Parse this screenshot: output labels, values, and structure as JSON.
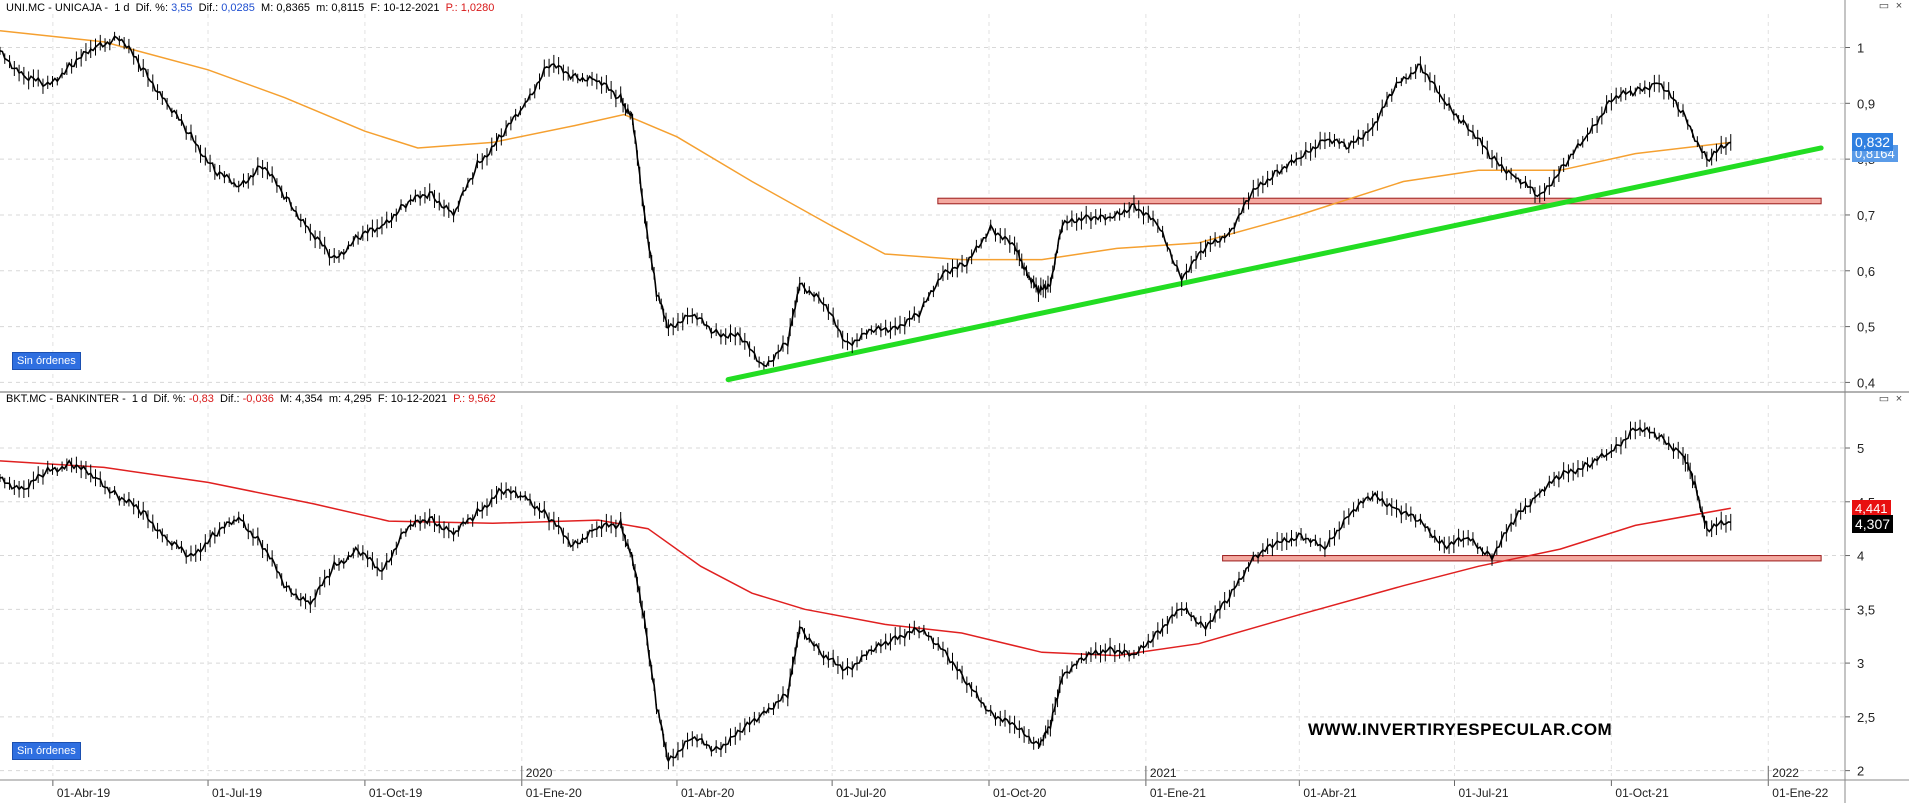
{
  "panels": [
    {
      "header": {
        "symbol": "UNI.MC - UNICAJA -",
        "tf": "1 d",
        "dif_pct_label": "Dif. %:",
        "dif_pct": "3,55",
        "dif_label": "Dif.:",
        "dif": "0,0285",
        "max_label": "M:",
        "max": "0,8365",
        "min_label": "m:",
        "min": "0,8115",
        "date_label": "F:",
        "date": "10-12-2021",
        "p_label": "P.:",
        "p": "1,0280"
      },
      "badge": "Sin órdenes",
      "price_tag": "0,832",
      "price_tag_under": "0,8164"
    },
    {
      "header": {
        "symbol": "BKT.MC - BANKINTER -",
        "tf": "1 d",
        "dif_pct_label": "Dif. %:",
        "dif_pct": "-0,83",
        "dif_label": "Dif.:",
        "dif": "-0,036",
        "max_label": "M:",
        "max": "4,354",
        "min_label": "m:",
        "min": "4,295",
        "date_label": "F:",
        "date": "10-12-2021",
        "p_label": "P.:",
        "p": "9,562"
      },
      "badge": "Sin órdenes",
      "price_tag": "4,307",
      "price_tag_under": "4,441"
    }
  ],
  "watermark": "WWW.INVERTIRYESPECULAR.COM",
  "window_buttons": [
    "▭",
    "×"
  ],
  "colors": {
    "uni_ma": "#f5a030",
    "bkt_ma": "#e02020",
    "trendline": "#22dd22",
    "resistance_fill": "#f4a9a0",
    "resistance_border": "#9b1c1c",
    "price_tag_blue": "#2f7fe0",
    "price_tag_red": "#e81010",
    "price_tag_black": "#000000"
  },
  "chart_data": [
    {
      "type": "line",
      "title": "UNI.MC - UNICAJA",
      "x_start": "2019-03-01",
      "x_end": "2021-12-10",
      "ylim": [
        0.39,
        1.06
      ],
      "y_ticks": [
        "0,4",
        "0,5",
        "0,6",
        "0,7",
        "0,8",
        "0,9",
        "1"
      ],
      "y_tick_values": [
        0.4,
        0.5,
        0.6,
        0.7,
        0.8,
        0.9,
        1.0
      ],
      "x_tick_labels": [
        "01-Abr-19",
        "01-Jul-19",
        "01-Oct-19",
        "01-Ene-20",
        "01-Abr-20",
        "01-Jul-20",
        "01-Oct-20",
        "01-Ene-21",
        "01-Abr-21",
        "01-Jul-21",
        "01-Oct-21",
        "01-Ene-22"
      ],
      "x_tick_dates": [
        "2019-04-01",
        "2019-07-01",
        "2019-10-01",
        "2020-01-01",
        "2020-04-01",
        "2020-07-01",
        "2020-10-01",
        "2021-01-01",
        "2021-04-01",
        "2021-07-01",
        "2021-10-01",
        "2022-01-01"
      ],
      "year_labels": [
        {
          "label": "2020",
          "date": "2020-01-01"
        },
        {
          "label": "2021",
          "date": "2021-01-01"
        },
        {
          "label": "2022",
          "date": "2022-01-01"
        }
      ],
      "price_series": [
        {
          "x": "2019-03-01",
          "y": 0.99
        },
        {
          "x": "2019-03-15",
          "y": 0.95
        },
        {
          "x": "2019-03-29",
          "y": 0.93
        },
        {
          "x": "2019-04-12",
          "y": 0.97
        },
        {
          "x": "2019-04-26",
          "y": 1.0
        },
        {
          "x": "2019-05-10",
          "y": 1.02
        },
        {
          "x": "2019-05-24",
          "y": 0.96
        },
        {
          "x": "2019-06-07",
          "y": 0.9
        },
        {
          "x": "2019-06-21",
          "y": 0.84
        },
        {
          "x": "2019-07-05",
          "y": 0.78
        },
        {
          "x": "2019-07-19",
          "y": 0.75
        },
        {
          "x": "2019-08-02",
          "y": 0.79
        },
        {
          "x": "2019-08-16",
          "y": 0.73
        },
        {
          "x": "2019-08-30",
          "y": 0.67
        },
        {
          "x": "2019-09-13",
          "y": 0.62
        },
        {
          "x": "2019-09-27",
          "y": 0.66
        },
        {
          "x": "2019-10-11",
          "y": 0.68
        },
        {
          "x": "2019-10-25",
          "y": 0.72
        },
        {
          "x": "2019-11-08",
          "y": 0.74
        },
        {
          "x": "2019-11-22",
          "y": 0.7
        },
        {
          "x": "2019-12-06",
          "y": 0.79
        },
        {
          "x": "2019-12-20",
          "y": 0.84
        },
        {
          "x": "2020-01-03",
          "y": 0.9
        },
        {
          "x": "2020-01-17",
          "y": 0.97
        },
        {
          "x": "2020-01-31",
          "y": 0.95
        },
        {
          "x": "2020-02-14",
          "y": 0.94
        },
        {
          "x": "2020-02-28",
          "y": 0.91
        },
        {
          "x": "2020-03-06",
          "y": 0.87
        },
        {
          "x": "2020-03-13",
          "y": 0.7
        },
        {
          "x": "2020-03-20",
          "y": 0.56
        },
        {
          "x": "2020-03-27",
          "y": 0.5
        },
        {
          "x": "2020-04-10",
          "y": 0.52
        },
        {
          "x": "2020-04-24",
          "y": 0.49
        },
        {
          "x": "2020-05-08",
          "y": 0.48
        },
        {
          "x": "2020-05-22",
          "y": 0.43
        },
        {
          "x": "2020-06-05",
          "y": 0.47
        },
        {
          "x": "2020-06-12",
          "y": 0.58
        },
        {
          "x": "2020-06-26",
          "y": 0.54
        },
        {
          "x": "2020-07-10",
          "y": 0.47
        },
        {
          "x": "2020-07-24",
          "y": 0.49
        },
        {
          "x": "2020-08-07",
          "y": 0.5
        },
        {
          "x": "2020-08-21",
          "y": 0.52
        },
        {
          "x": "2020-09-04",
          "y": 0.6
        },
        {
          "x": "2020-09-18",
          "y": 0.61
        },
        {
          "x": "2020-10-02",
          "y": 0.68
        },
        {
          "x": "2020-10-16",
          "y": 0.64
        },
        {
          "x": "2020-10-23",
          "y": 0.6
        },
        {
          "x": "2020-10-30",
          "y": 0.56
        },
        {
          "x": "2020-11-06",
          "y": 0.58
        },
        {
          "x": "2020-11-13",
          "y": 0.68
        },
        {
          "x": "2020-11-27",
          "y": 0.7
        },
        {
          "x": "2020-12-11",
          "y": 0.69
        },
        {
          "x": "2020-12-25",
          "y": 0.72
        },
        {
          "x": "2021-01-08",
          "y": 0.68
        },
        {
          "x": "2021-01-22",
          "y": 0.59
        },
        {
          "x": "2021-02-05",
          "y": 0.64
        },
        {
          "x": "2021-02-19",
          "y": 0.67
        },
        {
          "x": "2021-03-05",
          "y": 0.74
        },
        {
          "x": "2021-03-19",
          "y": 0.78
        },
        {
          "x": "2021-04-02",
          "y": 0.8
        },
        {
          "x": "2021-04-16",
          "y": 0.84
        },
        {
          "x": "2021-04-30",
          "y": 0.82
        },
        {
          "x": "2021-05-14",
          "y": 0.86
        },
        {
          "x": "2021-05-28",
          "y": 0.93
        },
        {
          "x": "2021-06-11",
          "y": 0.97
        },
        {
          "x": "2021-06-25",
          "y": 0.9
        },
        {
          "x": "2021-07-09",
          "y": 0.86
        },
        {
          "x": "2021-07-23",
          "y": 0.8
        },
        {
          "x": "2021-08-06",
          "y": 0.77
        },
        {
          "x": "2021-08-20",
          "y": 0.73
        },
        {
          "x": "2021-09-03",
          "y": 0.79
        },
        {
          "x": "2021-09-17",
          "y": 0.84
        },
        {
          "x": "2021-10-01",
          "y": 0.91
        },
        {
          "x": "2021-10-15",
          "y": 0.92
        },
        {
          "x": "2021-10-29",
          "y": 0.94
        },
        {
          "x": "2021-11-12",
          "y": 0.88
        },
        {
          "x": "2021-11-26",
          "y": 0.8
        },
        {
          "x": "2021-12-10",
          "y": 0.83
        }
      ],
      "ma_series": [
        {
          "x": "2019-03-01",
          "y": 1.03
        },
        {
          "x": "2019-05-01",
          "y": 1.01
        },
        {
          "x": "2019-07-01",
          "y": 0.96
        },
        {
          "x": "2019-08-15",
          "y": 0.91
        },
        {
          "x": "2019-10-01",
          "y": 0.85
        },
        {
          "x": "2019-11-01",
          "y": 0.82
        },
        {
          "x": "2019-12-15",
          "y": 0.83
        },
        {
          "x": "2020-02-01",
          "y": 0.86
        },
        {
          "x": "2020-03-01",
          "y": 0.88
        },
        {
          "x": "2020-04-01",
          "y": 0.84
        },
        {
          "x": "2020-05-15",
          "y": 0.76
        },
        {
          "x": "2020-07-01",
          "y": 0.68
        },
        {
          "x": "2020-08-01",
          "y": 0.63
        },
        {
          "x": "2020-09-15",
          "y": 0.62
        },
        {
          "x": "2020-11-01",
          "y": 0.62
        },
        {
          "x": "2020-12-15",
          "y": 0.64
        },
        {
          "x": "2021-02-01",
          "y": 0.65
        },
        {
          "x": "2021-04-01",
          "y": 0.7
        },
        {
          "x": "2021-06-01",
          "y": 0.76
        },
        {
          "x": "2021-07-15",
          "y": 0.78
        },
        {
          "x": "2021-09-01",
          "y": 0.78
        },
        {
          "x": "2021-10-15",
          "y": 0.81
        },
        {
          "x": "2021-12-10",
          "y": 0.83
        }
      ],
      "resistance_band": {
        "y_low": 0.72,
        "y_high": 0.73,
        "x_start": "2020-09-01",
        "x_end": "2022-02-01"
      },
      "trendline": {
        "x1": "2020-05-01",
        "y1": 0.405,
        "x2": "2022-02-01",
        "y2": 0.82
      }
    },
    {
      "type": "line",
      "title": "BKT.MC - BANKINTER",
      "x_start": "2019-03-01",
      "x_end": "2021-12-10",
      "ylim": [
        1.95,
        5.4
      ],
      "y_ticks": [
        "2",
        "2,5",
        "3",
        "3,5",
        "4",
        "4,5",
        "5"
      ],
      "y_tick_values": [
        2.0,
        2.5,
        3.0,
        3.5,
        4.0,
        4.5,
        5.0
      ],
      "x_tick_labels": [
        "01-Abr-19",
        "01-Jul-19",
        "01-Oct-19",
        "01-Ene-20",
        "01-Abr-20",
        "01-Jul-20",
        "01-Oct-20",
        "01-Ene-21",
        "01-Abr-21",
        "01-Jul-21",
        "01-Oct-21",
        "01-Ene-22"
      ],
      "x_tick_dates": [
        "2019-04-01",
        "2019-07-01",
        "2019-10-01",
        "2020-01-01",
        "2020-04-01",
        "2020-07-01",
        "2020-10-01",
        "2021-01-01",
        "2021-04-01",
        "2021-07-01",
        "2021-10-01",
        "2022-01-01"
      ],
      "year_labels": [
        {
          "label": "2020",
          "date": "2020-01-01"
        },
        {
          "label": "2021",
          "date": "2021-01-01"
        },
        {
          "label": "2022",
          "date": "2022-01-01"
        }
      ],
      "price_series": [
        {
          "x": "2019-03-01",
          "y": 4.7
        },
        {
          "x": "2019-03-15",
          "y": 4.62
        },
        {
          "x": "2019-03-29",
          "y": 4.78
        },
        {
          "x": "2019-04-12",
          "y": 4.86
        },
        {
          "x": "2019-04-26",
          "y": 4.72
        },
        {
          "x": "2019-05-10",
          "y": 4.55
        },
        {
          "x": "2019-05-24",
          "y": 4.4
        },
        {
          "x": "2019-06-07",
          "y": 4.15
        },
        {
          "x": "2019-06-21",
          "y": 3.98
        },
        {
          "x": "2019-07-05",
          "y": 4.2
        },
        {
          "x": "2019-07-19",
          "y": 4.35
        },
        {
          "x": "2019-08-02",
          "y": 4.1
        },
        {
          "x": "2019-08-16",
          "y": 3.7
        },
        {
          "x": "2019-08-30",
          "y": 3.55
        },
        {
          "x": "2019-09-13",
          "y": 3.9
        },
        {
          "x": "2019-09-27",
          "y": 4.05
        },
        {
          "x": "2019-10-11",
          "y": 3.85
        },
        {
          "x": "2019-10-25",
          "y": 4.25
        },
        {
          "x": "2019-11-08",
          "y": 4.35
        },
        {
          "x": "2019-11-22",
          "y": 4.2
        },
        {
          "x": "2019-12-06",
          "y": 4.4
        },
        {
          "x": "2019-12-20",
          "y": 4.6
        },
        {
          "x": "2020-01-03",
          "y": 4.55
        },
        {
          "x": "2020-01-17",
          "y": 4.35
        },
        {
          "x": "2020-01-31",
          "y": 4.1
        },
        {
          "x": "2020-02-14",
          "y": 4.25
        },
        {
          "x": "2020-02-28",
          "y": 4.3
        },
        {
          "x": "2020-03-06",
          "y": 3.95
        },
        {
          "x": "2020-03-13",
          "y": 3.4
        },
        {
          "x": "2020-03-20",
          "y": 2.6
        },
        {
          "x": "2020-03-27",
          "y": 2.1
        },
        {
          "x": "2020-04-10",
          "y": 2.3
        },
        {
          "x": "2020-04-24",
          "y": 2.2
        },
        {
          "x": "2020-05-08",
          "y": 2.35
        },
        {
          "x": "2020-05-22",
          "y": 2.55
        },
        {
          "x": "2020-06-05",
          "y": 2.7
        },
        {
          "x": "2020-06-12",
          "y": 3.35
        },
        {
          "x": "2020-06-26",
          "y": 3.05
        },
        {
          "x": "2020-07-10",
          "y": 2.95
        },
        {
          "x": "2020-07-24",
          "y": 3.1
        },
        {
          "x": "2020-08-07",
          "y": 3.25
        },
        {
          "x": "2020-08-21",
          "y": 3.3
        },
        {
          "x": "2020-09-04",
          "y": 3.15
        },
        {
          "x": "2020-09-18",
          "y": 2.8
        },
        {
          "x": "2020-10-02",
          "y": 2.55
        },
        {
          "x": "2020-10-16",
          "y": 2.4
        },
        {
          "x": "2020-10-30",
          "y": 2.25
        },
        {
          "x": "2020-11-06",
          "y": 2.4
        },
        {
          "x": "2020-11-13",
          "y": 2.9
        },
        {
          "x": "2020-11-27",
          "y": 3.05
        },
        {
          "x": "2020-12-11",
          "y": 3.15
        },
        {
          "x": "2020-12-25",
          "y": 3.05
        },
        {
          "x": "2021-01-08",
          "y": 3.3
        },
        {
          "x": "2021-01-22",
          "y": 3.5
        },
        {
          "x": "2021-02-05",
          "y": 3.35
        },
        {
          "x": "2021-02-19",
          "y": 3.6
        },
        {
          "x": "2021-03-05",
          "y": 4.0
        },
        {
          "x": "2021-03-19",
          "y": 4.1
        },
        {
          "x": "2021-04-02",
          "y": 4.2
        },
        {
          "x": "2021-04-16",
          "y": 4.05
        },
        {
          "x": "2021-04-30",
          "y": 4.4
        },
        {
          "x": "2021-05-14",
          "y": 4.55
        },
        {
          "x": "2021-05-28",
          "y": 4.45
        },
        {
          "x": "2021-06-11",
          "y": 4.3
        },
        {
          "x": "2021-06-25",
          "y": 4.1
        },
        {
          "x": "2021-07-09",
          "y": 4.15
        },
        {
          "x": "2021-07-23",
          "y": 4.0
        },
        {
          "x": "2021-08-06",
          "y": 4.35
        },
        {
          "x": "2021-08-20",
          "y": 4.6
        },
        {
          "x": "2021-09-03",
          "y": 4.75
        },
        {
          "x": "2021-09-17",
          "y": 4.85
        },
        {
          "x": "2021-10-01",
          "y": 4.95
        },
        {
          "x": "2021-10-15",
          "y": 5.2
        },
        {
          "x": "2021-10-29",
          "y": 5.1
        },
        {
          "x": "2021-11-12",
          "y": 4.95
        },
        {
          "x": "2021-11-19",
          "y": 4.65
        },
        {
          "x": "2021-11-26",
          "y": 4.25
        },
        {
          "x": "2021-12-10",
          "y": 4.31
        }
      ],
      "ma_series": [
        {
          "x": "2019-03-01",
          "y": 4.88
        },
        {
          "x": "2019-05-01",
          "y": 4.82
        },
        {
          "x": "2019-07-01",
          "y": 4.68
        },
        {
          "x": "2019-09-01",
          "y": 4.48
        },
        {
          "x": "2019-10-15",
          "y": 4.32
        },
        {
          "x": "2019-12-15",
          "y": 4.3
        },
        {
          "x": "2020-02-15",
          "y": 4.33
        },
        {
          "x": "2020-03-15",
          "y": 4.25
        },
        {
          "x": "2020-04-15",
          "y": 3.9
        },
        {
          "x": "2020-05-15",
          "y": 3.65
        },
        {
          "x": "2020-06-15",
          "y": 3.5
        },
        {
          "x": "2020-08-01",
          "y": 3.36
        },
        {
          "x": "2020-09-15",
          "y": 3.28
        },
        {
          "x": "2020-11-01",
          "y": 3.1
        },
        {
          "x": "2020-12-15",
          "y": 3.07
        },
        {
          "x": "2021-02-01",
          "y": 3.18
        },
        {
          "x": "2021-04-01",
          "y": 3.45
        },
        {
          "x": "2021-06-01",
          "y": 3.72
        },
        {
          "x": "2021-07-15",
          "y": 3.9
        },
        {
          "x": "2021-09-01",
          "y": 4.06
        },
        {
          "x": "2021-10-15",
          "y": 4.28
        },
        {
          "x": "2021-12-10",
          "y": 4.44
        }
      ],
      "support_band": {
        "y_low": 3.95,
        "y_high": 4.0,
        "x_start": "2021-02-15",
        "x_end": "2022-02-01"
      }
    }
  ]
}
